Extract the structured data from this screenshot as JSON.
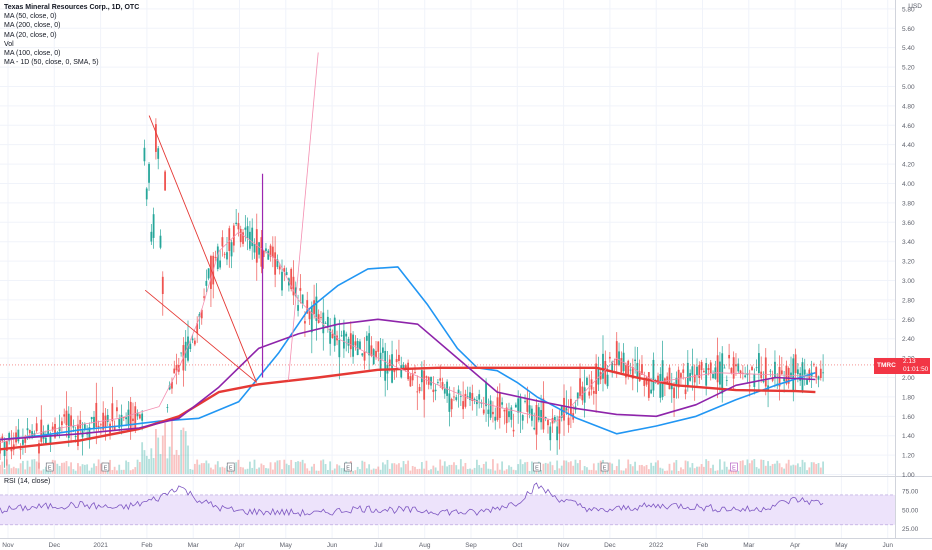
{
  "legend": {
    "title": "Texas Mineral Resources Corp., 1D, OTC",
    "indicators": [
      "MA (50, close, 0)",
      "MA (200, close, 0)",
      "MA (20, close, 0)",
      "Vol",
      "MA (100, close, 0)",
      "MA - 1D (50, close, 0, SMA, 5)"
    ],
    "rsi": "RSI (14, close)"
  },
  "currency": "USD",
  "price_tag": {
    "symbol": "TMRC",
    "price": "2.13",
    "countdown": "01:01:50"
  },
  "colors": {
    "up": "#26a69a",
    "down": "#ef5350",
    "ma50": "#2196f3",
    "ma200": "#e53935",
    "ma20": "#f48fb1",
    "ma100": "#8e24aa",
    "rsi": "#7e57c2",
    "rsi_band": "#ede3fb"
  },
  "chart_data": [
    {
      "type": "candlestick",
      "title": "Texas Mineral Resources Corp., 1D, OTC",
      "y_ticks": [
        "1.00",
        "1.20",
        "1.40",
        "1.60",
        "1.80",
        "2.00",
        "2.20",
        "2.40",
        "2.60",
        "2.80",
        "3.00",
        "3.20",
        "3.40",
        "3.60",
        "3.80",
        "4.00",
        "4.20",
        "4.40",
        "4.60",
        "4.80",
        "5.00",
        "5.20",
        "5.40",
        "5.60",
        "5.80"
      ],
      "ylim": [
        1.0,
        5.85
      ],
      "x_ticks": [
        "Nov",
        "Dec",
        "2021",
        "Feb",
        "Mar",
        "Apr",
        "May",
        "Jun",
        "Jul",
        "Aug",
        "Sep",
        "Oct",
        "Nov",
        "Dec",
        "2022",
        "Feb",
        "Mar",
        "Apr",
        "May",
        "Jun"
      ],
      "series": [
        {
          "name": "MA (50, close, 0)",
          "x": [
            0,
            2,
            4,
            6,
            8,
            10,
            12,
            14,
            15.5,
            17,
            18.5,
            20,
            21.5,
            23,
            24,
            25,
            26,
            27,
            29,
            31,
            33,
            35,
            37,
            39,
            41
          ],
          "y": [
            1.36,
            1.4,
            1.46,
            1.5,
            1.55,
            1.58,
            1.75,
            2.25,
            2.7,
            2.95,
            3.12,
            3.14,
            2.75,
            2.3,
            2.1,
            2.07,
            1.95,
            1.8,
            1.58,
            1.42,
            1.5,
            1.6,
            1.77,
            1.92,
            2.05
          ]
        },
        {
          "name": "MA (200, close, 0)",
          "x": [
            0,
            4,
            7,
            9,
            11,
            13,
            16,
            19,
            22,
            26,
            30,
            32,
            34,
            37,
            40,
            41
          ],
          "y": [
            1.26,
            1.35,
            1.47,
            1.6,
            1.85,
            1.93,
            2.0,
            2.08,
            2.1,
            2.1,
            2.1,
            2.0,
            1.92,
            1.87,
            1.86,
            1.85
          ]
        },
        {
          "name": "MA (20, close, 0)",
          "x": [
            0,
            3,
            6,
            8,
            9,
            10,
            11,
            12,
            14,
            15,
            17,
            20,
            24,
            28,
            31,
            33,
            36,
            40,
            41
          ],
          "y": [
            1.33,
            1.48,
            1.58,
            1.7,
            2.1,
            2.6,
            3.3,
            3.5,
            3.2,
            2.8,
            2.4,
            2.1,
            1.75,
            1.55,
            2.2,
            1.95,
            2.05,
            2.02,
            2.01
          ]
        },
        {
          "name": "MA (100, close, 0)",
          "x": [
            0,
            4,
            7,
            9,
            11,
            13,
            15,
            17,
            19,
            21,
            23,
            25,
            27,
            29,
            31,
            33,
            35,
            37,
            39,
            41
          ],
          "y": [
            1.36,
            1.42,
            1.48,
            1.58,
            1.9,
            2.3,
            2.45,
            2.55,
            2.6,
            2.55,
            2.2,
            1.85,
            1.76,
            1.68,
            1.62,
            1.6,
            1.72,
            1.92,
            2.0,
            1.98
          ]
        },
        {
          "name": "MA - 1D (50, close, 0, SMA, 5)",
          "x": [
            14.5,
            16
          ],
          "y": [
            1.97,
            5.35
          ]
        }
      ]
    },
    {
      "type": "line",
      "title": "RSI (14, close)",
      "y_ticks": [
        "25.00",
        "50.00",
        "75.00"
      ],
      "bands": [
        30,
        70
      ],
      "ylim": [
        15,
        90
      ],
      "series": [
        {
          "name": "RSI (14, close)",
          "x": [
            0,
            2,
            4,
            6,
            7,
            8,
            9,
            10,
            11,
            12,
            14,
            16,
            18,
            20,
            22,
            24,
            26,
            27,
            28,
            30,
            32,
            34,
            36,
            38,
            40,
            41
          ],
          "y": [
            50,
            54,
            57,
            52,
            58,
            66,
            82,
            63,
            53,
            48,
            47,
            45,
            52,
            50,
            48,
            46,
            60,
            83,
            66,
            48,
            54,
            56,
            52,
            50,
            64,
            60
          ]
        }
      ]
    }
  ]
}
